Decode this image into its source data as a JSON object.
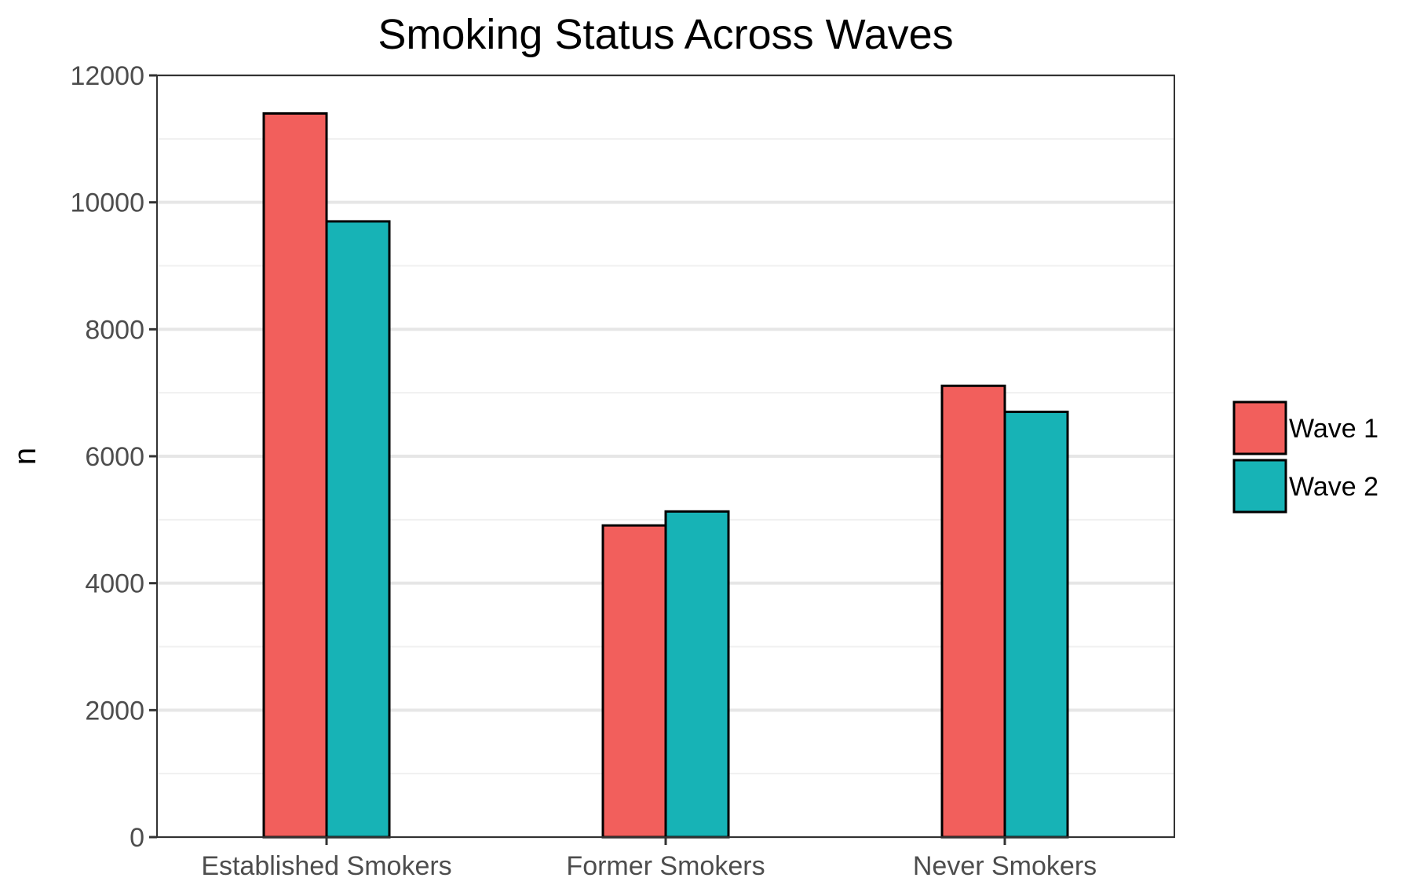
{
  "chart_data": {
    "type": "bar",
    "title": "Smoking Status Across Waves",
    "xlabel": "",
    "ylabel": "n",
    "categories": [
      "Established Smokers",
      "Former Smokers",
      "Never Smokers"
    ],
    "series": [
      {
        "name": "Wave 1",
        "values": [
          11400,
          4910,
          7110
        ],
        "color": "#F25F5C"
      },
      {
        "name": "Wave 2",
        "values": [
          9700,
          5130,
          6700
        ],
        "color": "#17B3B6"
      }
    ],
    "ylim": [
      0,
      12000
    ],
    "yticks": [
      "0",
      "2000",
      "4000",
      "6000",
      "8000",
      "10000",
      "12000"
    ],
    "grid": true,
    "legend_position": "right"
  }
}
